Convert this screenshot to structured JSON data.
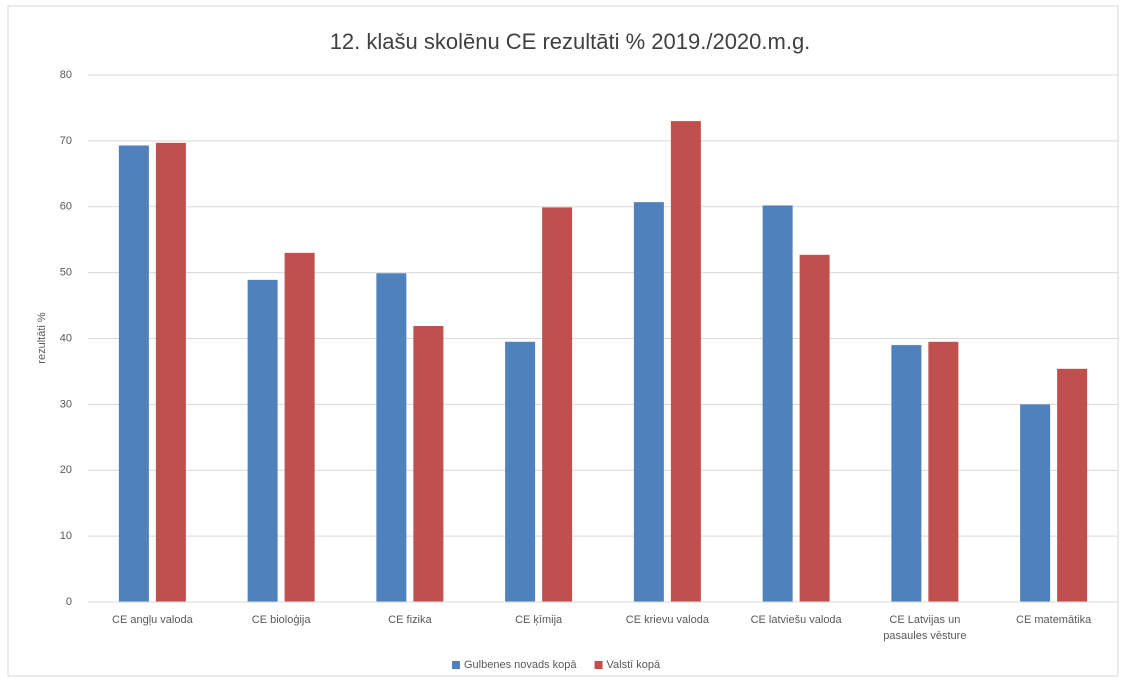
{
  "chart_data": {
    "type": "bar",
    "title": "12. klašu skolēnu CE rezultāti % 2019./2020.m.g.",
    "y_label": "rezultāti %",
    "categories": [
      "CE angļu valoda",
      "CE bioloģija",
      "CE fizika",
      "CE ķīmija",
      "CE krievu valoda",
      "CE latviešu valoda",
      "CE Latvijas un pasaules vēsture",
      "CE matemātika"
    ],
    "series": [
      {
        "name": "Gulbenes novads kopā",
        "color": "#4f81bd",
        "values": [
          69.3,
          48.9,
          49.9,
          39.5,
          60.7,
          60.2,
          39.0,
          30.0
        ]
      },
      {
        "name": "Valstī kopā",
        "color": "#c0504d",
        "values": [
          69.7,
          53.0,
          41.9,
          59.9,
          73.0,
          52.7,
          39.5,
          35.4
        ]
      }
    ],
    "ylim": [
      0,
      80
    ],
    "yticks": [
      0,
      10,
      20,
      30,
      40,
      50,
      60,
      70,
      80
    ],
    "grid": true,
    "legend": "bottom"
  }
}
